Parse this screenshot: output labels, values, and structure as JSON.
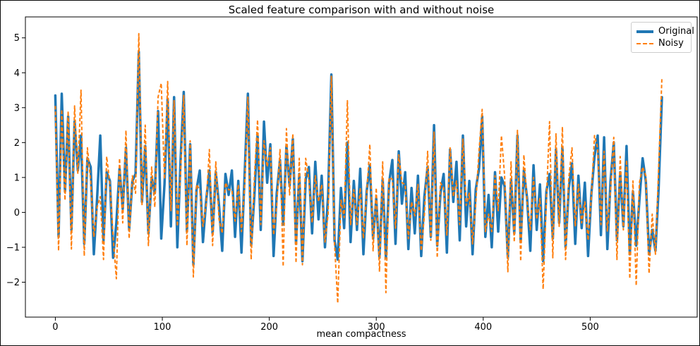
{
  "figure": {
    "title": "Scaled feature comparison with and without noise",
    "xlabel": "mean compactness"
  },
  "legend": {
    "position": "upper right",
    "items": [
      {
        "label": "Original",
        "color": "#1f77b4",
        "style": "solid"
      },
      {
        "label": "Noisy",
        "color": "#ff7f0e",
        "style": "dashed"
      }
    ]
  },
  "chart_data": {
    "type": "line",
    "title": "Scaled feature comparison with and without noise",
    "xlabel": "mean compactness",
    "ylabel": "",
    "grid": false,
    "legend_position": "upper right",
    "xlim": [
      -28,
      600
    ],
    "ylim": [
      -3.0,
      5.6
    ],
    "x_ticks": [
      0,
      100,
      200,
      300,
      400,
      500
    ],
    "x_tick_labels": [
      "0",
      "100",
      "200",
      "300",
      "400",
      "500"
    ],
    "y_ticks": [
      -2,
      -1,
      0,
      1,
      2,
      3,
      4,
      5
    ],
    "y_tick_labels": [
      "−2",
      "−1",
      "0",
      "1",
      "2",
      "3",
      "4",
      "5"
    ],
    "sampling_note": "569 samples in source; values approximated from plot, every 3rd sample listed",
    "x_start": 0,
    "x_step": 3,
    "n_points": 190,
    "series": [
      {
        "name": "Original",
        "color": "#1f77b4",
        "line_style": "solid",
        "line_width": 3.5,
        "values": [
          3.35,
          -0.7,
          3.4,
          0.6,
          2.75,
          -0.5,
          2.6,
          1.2,
          2.2,
          -0.9,
          1.55,
          1.3,
          -1.2,
          0.4,
          2.2,
          -0.8,
          1.15,
          0.9,
          -1.3,
          -0.3,
          1.25,
          0.1,
          1.85,
          -0.5,
          0.9,
          1.1,
          4.6,
          0.3,
          1.9,
          -0.6,
          1.0,
          0.55,
          2.9,
          -0.75,
          0.8,
          3.25,
          -0.4,
          3.3,
          -1.0,
          1.45,
          3.45,
          -0.55,
          1.95,
          -1.5,
          0.65,
          1.2,
          -0.85,
          0.35,
          1.2,
          -0.6,
          1.15,
          0.2,
          -1.1,
          1.1,
          0.5,
          1.2,
          -0.7,
          0.9,
          -1.15,
          1.15,
          3.4,
          -0.95,
          0.45,
          2.2,
          -0.5,
          2.6,
          0.85,
          1.95,
          -1.25,
          0.55,
          1.5,
          -0.35,
          1.9,
          0.75,
          2.1,
          -0.9,
          1.1,
          -1.4,
          0.95,
          1.3,
          -0.6,
          1.45,
          -0.2,
          1.05,
          -1.0,
          0.5,
          3.95,
          -0.8,
          -1.35,
          0.7,
          -0.45,
          2.0,
          -0.85,
          0.9,
          -0.5,
          1.25,
          -1.2,
          0.6,
          1.35,
          -0.75,
          0.4,
          -1.3,
          0.95,
          -1.3,
          0.85,
          1.5,
          -0.9,
          1.75,
          0.25,
          1.15,
          -1.05,
          0.7,
          -0.6,
          1.05,
          -1.25,
          0.45,
          1.3,
          -0.7,
          2.5,
          -0.95,
          0.55,
          1.1,
          -1.15,
          1.8,
          0.3,
          1.45,
          -0.8,
          2.2,
          -0.4,
          0.9,
          -1.2,
          0.65,
          1.25,
          2.75,
          -0.7,
          0.5,
          -1.0,
          1.15,
          -0.55,
          1.0,
          0.75,
          -1.3,
          0.95,
          -0.6,
          2.2,
          -0.85,
          1.2,
          0.4,
          -1.1,
          1.35,
          -0.5,
          0.8,
          -1.4,
          0.6,
          1.1,
          -0.75,
          1.8,
          -0.3,
          1.85,
          -1.0,
          0.7,
          1.4,
          -0.9,
          1.05,
          -0.45,
          0.85,
          -1.25,
          0.5,
          1.6,
          2.2,
          -0.65,
          2.15,
          -1.05,
          0.9,
          2.0,
          -0.8,
          1.15,
          -0.4,
          1.9,
          -1.2,
          0.6,
          -0.95,
          0.35,
          1.55,
          0.9,
          -1.2,
          -0.5,
          -1.1,
          0.7,
          3.3
        ]
      },
      {
        "name": "Noisy",
        "color": "#ff7f0e",
        "line_style": "dashed",
        "line_width": 2,
        "values": [
          3.05,
          -1.1,
          2.95,
          0.35,
          2.9,
          -1.05,
          3.05,
          1.1,
          3.5,
          -1.25,
          1.85,
          0.9,
          -0.7,
          0.15,
          0.45,
          -1.35,
          1.6,
          0.8,
          -0.7,
          -1.9,
          1.55,
          -0.3,
          2.35,
          -0.75,
          1.05,
          0.55,
          5.12,
          0.2,
          2.5,
          -0.95,
          1.3,
          0.15,
          3.3,
          3.7,
          0.95,
          3.75,
          0.05,
          3.2,
          -0.4,
          1.1,
          3.35,
          -0.95,
          2.05,
          -1.85,
          0.8,
          0.65,
          -0.4,
          0.25,
          1.8,
          -0.95,
          1.45,
          -0.2,
          -0.6,
          0.85,
          0.65,
          0.65,
          -0.25,
          0.8,
          -0.55,
          0.8,
          3.3,
          -1.35,
          0.95,
          2.65,
          -0.35,
          2.05,
          1.3,
          1.85,
          -0.65,
          0.2,
          1.8,
          -1.55,
          2.4,
          0.5,
          2.25,
          -1.45,
          1.55,
          -1.5,
          1.55,
          0.95,
          -0.3,
          1.05,
          0.3,
          0.8,
          -0.85,
          -0.05,
          3.9,
          -0.9,
          -2.6,
          0.35,
          -0.15,
          3.2,
          -0.35,
          0.65,
          -0.35,
          0.7,
          -0.75,
          0.5,
          1.95,
          -1.1,
          0.7,
          -1.7,
          1.45,
          -2.3,
          1.0,
          0.95,
          -0.45,
          1.65,
          0.85,
          0.8,
          -0.75,
          0.3,
          -0.1,
          0.8,
          -1.1,
          -0.1,
          1.75,
          -0.8,
          2.3,
          -1.3,
          0.85,
          0.7,
          -0.65,
          1.85,
          0.45,
          0.9,
          -0.35,
          2.1,
          0.2,
          0.55,
          -0.9,
          0.25,
          1.75,
          2.95,
          -0.55,
          -0.05,
          -0.55,
          1.05,
          0.05,
          2.2,
          1.05,
          -1.7,
          1.45,
          -0.85,
          2.35,
          -1.4,
          1.65,
          0.3,
          -0.5,
          1.0,
          -0.2,
          0.4,
          -2.2,
          0.35,
          2.6,
          -1.3,
          2.25,
          -0.4,
          2.45,
          -1.35,
          1.0,
          1.85,
          -0.4,
          0.8,
          -0.3,
          0.3,
          -0.8,
          0.4,
          2.2,
          1.85,
          -0.35,
          1.75,
          -0.55,
          0.65,
          2.15,
          -1.35,
          1.6,
          -0.5,
          1.5,
          -1.9,
          0.9,
          -2.1,
          0.85,
          1.3,
          1.05,
          -1.75,
          -0.05,
          -1.2,
          1.3,
          3.85
        ]
      }
    ]
  }
}
